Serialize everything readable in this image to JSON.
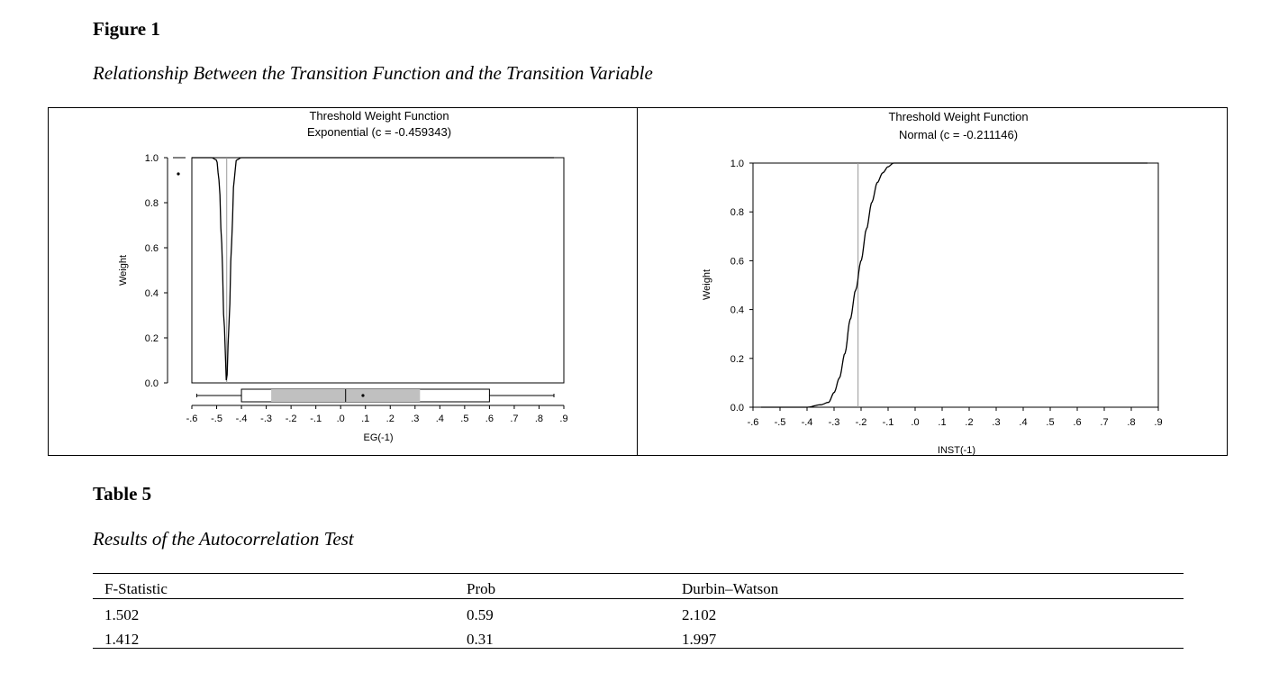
{
  "figure": {
    "label": "Figure 1",
    "caption": "Relationship Between the Transition Function and the Transition Variable"
  },
  "chart_data": [
    {
      "type": "line",
      "title": "Threshold Weight Function",
      "subtitle": "Exponential (c = -0.459343)",
      "xlabel": "EG(-1)",
      "ylabel": "Weight",
      "xlim": [
        -0.6,
        0.9
      ],
      "ylim": [
        0.0,
        1.0
      ],
      "xticks": [
        "-.6",
        "-.5",
        "-.4",
        "-.3",
        "-.2",
        "-.1",
        ".0",
        ".1",
        ".2",
        ".3",
        ".4",
        ".5",
        ".6",
        ".7",
        ".8",
        ".9"
      ],
      "yticks": [
        "0.0",
        "0.2",
        "0.4",
        "0.6",
        "0.8",
        "1.0"
      ],
      "function": "exponential",
      "threshold_c": -0.459343,
      "x": [
        -0.6,
        -0.52,
        -0.5,
        -0.49,
        -0.48,
        -0.47,
        -0.46,
        -0.45,
        -0.44,
        -0.43,
        -0.42,
        -0.4,
        -0.38,
        0.86
      ],
      "y": [
        1.0,
        1.0,
        0.99,
        0.9,
        0.62,
        0.26,
        0.0,
        0.26,
        0.62,
        0.9,
        0.99,
        1.0,
        1.0,
        1.0
      ],
      "threshold_line_x": -0.459343,
      "boxplot": {
        "whisker_low": -0.58,
        "q1": -0.4,
        "inner_low": -0.28,
        "median": 0.02,
        "mean": 0.09,
        "inner_high": 0.32,
        "q3": 0.6,
        "whisker_high": 0.86
      }
    },
    {
      "type": "line",
      "title": "Threshold Weight Function",
      "subtitle": "Normal (c = -0.211146)",
      "xlabel": "INST(-1)",
      "ylabel": "Weight",
      "xlim": [
        -0.6,
        0.9
      ],
      "ylim": [
        0.0,
        1.0
      ],
      "xticks": [
        "-.6",
        "-.5",
        "-.4",
        "-.3",
        "-.2",
        "-.1",
        ".0",
        ".1",
        ".2",
        ".3",
        ".4",
        ".5",
        ".6",
        ".7",
        ".8",
        ".9"
      ],
      "yticks": [
        "0.0",
        "0.2",
        "0.4",
        "0.6",
        "0.8",
        "1.0"
      ],
      "function": "normal",
      "threshold_c": -0.211146,
      "x": [
        -0.57,
        -0.4,
        -0.35,
        -0.32,
        -0.3,
        -0.28,
        -0.26,
        -0.24,
        -0.22,
        -0.2,
        -0.18,
        -0.16,
        -0.14,
        -0.12,
        -0.1,
        -0.08,
        -0.05,
        0.86
      ],
      "y": [
        0.0,
        0.0,
        0.01,
        0.02,
        0.06,
        0.12,
        0.22,
        0.36,
        0.48,
        0.6,
        0.73,
        0.84,
        0.92,
        0.96,
        0.985,
        1.0,
        1.0,
        1.0
      ],
      "threshold_line_x": -0.211146
    }
  ],
  "table": {
    "label": "Table 5",
    "caption": "Results of the Autocorrelation Test",
    "headers": [
      "F-Statistic",
      "Prob",
      "Durbin–Watson"
    ],
    "rows": [
      [
        "1.502",
        "0.59",
        "2.102"
      ],
      [
        "1.412",
        "0.31",
        "1.997"
      ]
    ]
  }
}
